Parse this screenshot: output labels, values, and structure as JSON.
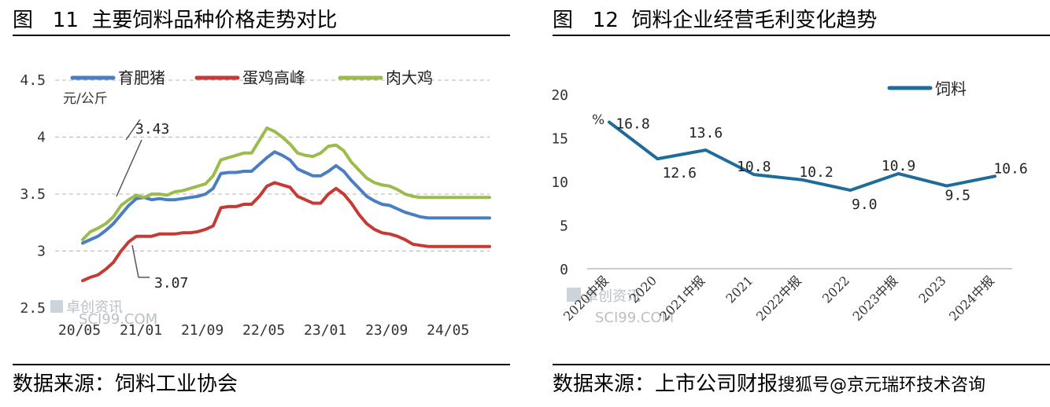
{
  "left": {
    "figure_title": "图   11  主要饲料品种价格走势对比",
    "source": "数据来源：饲料工业协会",
    "watermark": "卓创资讯",
    "watermark_sub": "SCI99.COM",
    "unit": "元/公斤",
    "chart_data": {
      "type": "line",
      "x": [
        "20/05",
        "20/06",
        "20/07",
        "20/08",
        "20/09",
        "20/10",
        "20/11",
        "20/12",
        "21/01",
        "21/02",
        "21/03",
        "21/04",
        "21/05",
        "21/06",
        "21/07",
        "21/08",
        "21/09",
        "21/10",
        "21/11",
        "21/12",
        "22/01",
        "22/02",
        "22/03",
        "22/04",
        "22/05",
        "22/06",
        "22/07",
        "22/08",
        "22/09",
        "22/10",
        "22/11",
        "22/12",
        "23/01",
        "23/02",
        "23/03",
        "23/04",
        "23/05",
        "23/06",
        "23/07",
        "23/08",
        "23/09",
        "23/10",
        "23/11",
        "23/12",
        "24/01",
        "24/02",
        "24/03",
        "24/04",
        "24/05",
        "24/06",
        "24/07",
        "24/08",
        "24/09",
        "24/10"
      ],
      "x_tick_labels": [
        "20/05",
        "21/01",
        "21/09",
        "22/05",
        "23/01",
        "23/09",
        "24/05"
      ],
      "y_tick_labels": [
        "2.5",
        "3",
        "3.5",
        "4",
        "4.5"
      ],
      "ylim": [
        2.5,
        4.5
      ],
      "grid": true,
      "legend_position": "top",
      "series": [
        {
          "name": "育肥猪",
          "color": "#4a7ec2",
          "values": [
            3.07,
            3.1,
            3.13,
            3.18,
            3.24,
            3.32,
            3.4,
            3.46,
            3.47,
            3.45,
            3.46,
            3.45,
            3.45,
            3.46,
            3.47,
            3.48,
            3.5,
            3.55,
            3.68,
            3.69,
            3.69,
            3.7,
            3.7,
            3.76,
            3.82,
            3.87,
            3.84,
            3.8,
            3.72,
            3.69,
            3.66,
            3.66,
            3.7,
            3.75,
            3.7,
            3.62,
            3.55,
            3.48,
            3.44,
            3.41,
            3.4,
            3.37,
            3.34,
            3.32,
            3.3,
            3.29,
            3.29,
            3.29,
            3.29,
            3.29,
            3.29,
            3.29,
            3.29,
            3.29
          ]
        },
        {
          "name": "蛋鸡高峰",
          "color": "#c53a35",
          "values": [
            2.74,
            2.77,
            2.79,
            2.84,
            2.9,
            3.0,
            3.08,
            3.13,
            3.13,
            3.13,
            3.15,
            3.15,
            3.15,
            3.16,
            3.16,
            3.17,
            3.19,
            3.22,
            3.38,
            3.39,
            3.39,
            3.41,
            3.41,
            3.48,
            3.57,
            3.6,
            3.58,
            3.56,
            3.48,
            3.45,
            3.42,
            3.42,
            3.5,
            3.55,
            3.5,
            3.42,
            3.32,
            3.24,
            3.19,
            3.16,
            3.15,
            3.13,
            3.1,
            3.06,
            3.05,
            3.04,
            3.04,
            3.04,
            3.04,
            3.04,
            3.04,
            3.04,
            3.04,
            3.04
          ]
        },
        {
          "name": "肉大鸡",
          "color": "#9bbb4a",
          "values": [
            3.1,
            3.17,
            3.2,
            3.24,
            3.3,
            3.4,
            3.45,
            3.49,
            3.47,
            3.5,
            3.5,
            3.49,
            3.52,
            3.53,
            3.55,
            3.57,
            3.59,
            3.66,
            3.8,
            3.82,
            3.84,
            3.86,
            3.86,
            3.97,
            4.08,
            4.05,
            4.0,
            3.94,
            3.86,
            3.84,
            3.83,
            3.86,
            3.92,
            3.93,
            3.88,
            3.78,
            3.71,
            3.64,
            3.6,
            3.58,
            3.57,
            3.54,
            3.5,
            3.48,
            3.47,
            3.47,
            3.47,
            3.47,
            3.47,
            3.47,
            3.47,
            3.47,
            3.47,
            3.47
          ]
        }
      ],
      "annotations": [
        "3.43",
        "3.07"
      ]
    }
  },
  "right": {
    "figure_title": "图   12  饲料企业经营毛利变化趋势",
    "source": "数据来源：上市公司财报",
    "source_overlay": "搜狐号@京元瑞环技术咨询",
    "watermark": "卓创资讯",
    "watermark_sub": "SCI99.COM",
    "unit": "%",
    "chart_data": {
      "type": "line",
      "categories": [
        "2020中报",
        "2020",
        "2021中报",
        "2021",
        "2022中报",
        "2022",
        "2023中报",
        "2023",
        "2024中报"
      ],
      "data_labels": [
        "16.8",
        "12.6",
        "13.6",
        "10.8",
        "10.2",
        "9.0",
        "10.9",
        "9.5",
        "10.6"
      ],
      "y_tick_labels": [
        "0",
        "5",
        "10",
        "15",
        "20"
      ],
      "ylim": [
        0,
        20
      ],
      "grid": false,
      "legend_position": "top-right",
      "series": [
        {
          "name": "饲料",
          "color": "#1f6b9a",
          "values": [
            16.8,
            12.6,
            13.6,
            10.8,
            10.2,
            9.0,
            10.9,
            9.5,
            10.6
          ]
        }
      ]
    }
  }
}
